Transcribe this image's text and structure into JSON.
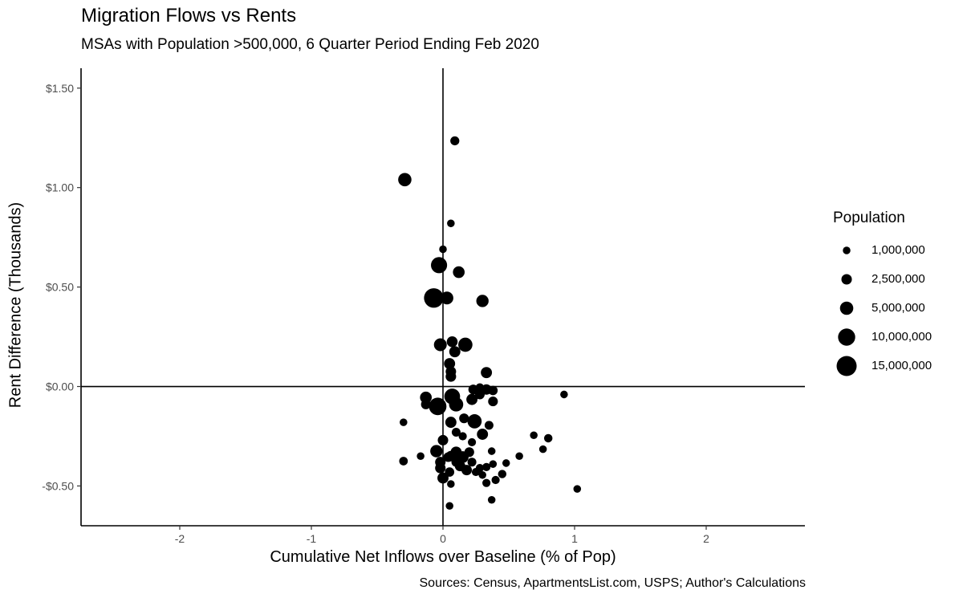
{
  "chart_data": {
    "type": "scatter",
    "title": "Migration Flows vs Rents",
    "subtitle": "MSAs with Population >500,000, 6 Quarter Period Ending Feb 2020",
    "xlabel": "Cumulative Net Inflows over Baseline (% of Pop)",
    "ylabel": "Rent Difference (Thousands)",
    "caption": "Sources: Census, ApartmentsList.com, USPS; Author's Calculations",
    "xlim": [
      -2.75,
      2.75
    ],
    "ylim": [
      -0.7,
      1.6
    ],
    "x_ticks": [
      {
        "value": -2,
        "label": "-2"
      },
      {
        "value": -1,
        "label": "-1"
      },
      {
        "value": 0,
        "label": "0"
      },
      {
        "value": 1,
        "label": "1"
      },
      {
        "value": 2,
        "label": "2"
      }
    ],
    "y_ticks": [
      {
        "value": -0.5,
        "label": "-$0.50"
      },
      {
        "value": 0,
        "label": "$0.00"
      },
      {
        "value": 0.5,
        "label": "$0.50"
      },
      {
        "value": 1.0,
        "label": "$1.00"
      },
      {
        "value": 1.5,
        "label": "$1.50"
      }
    ],
    "reference_lines": {
      "x": 0,
      "y": 0
    },
    "grid": false,
    "legend": {
      "title": "Population",
      "placement": "right",
      "entries": [
        {
          "label": "1,000,000",
          "value": 1000000
        },
        {
          "label": "2,500,000",
          "value": 2500000
        },
        {
          "label": "5,000,000",
          "value": 5000000
        },
        {
          "label": "10,000,000",
          "value": 10000000
        },
        {
          "label": "15,000,000",
          "value": 15000000
        }
      ]
    },
    "points": [
      {
        "x": 0.09,
        "y": 1.235,
        "pop": 1600000
      },
      {
        "x": -0.29,
        "y": 1.04,
        "pop": 5000000
      },
      {
        "x": 0.06,
        "y": 0.82,
        "pop": 1000000
      },
      {
        "x": 0.0,
        "y": 0.69,
        "pop": 1000000
      },
      {
        "x": -0.03,
        "y": 0.61,
        "pop": 8500000
      },
      {
        "x": 0.12,
        "y": 0.575,
        "pop": 3500000
      },
      {
        "x": -0.07,
        "y": 0.445,
        "pop": 14000000
      },
      {
        "x": 0.03,
        "y": 0.445,
        "pop": 4500000
      },
      {
        "x": 0.3,
        "y": 0.43,
        "pop": 4000000
      },
      {
        "x": -0.02,
        "y": 0.21,
        "pop": 4500000
      },
      {
        "x": 0.07,
        "y": 0.225,
        "pop": 2800000
      },
      {
        "x": 0.17,
        "y": 0.21,
        "pop": 6000000
      },
      {
        "x": 0.09,
        "y": 0.175,
        "pop": 3000000
      },
      {
        "x": 0.05,
        "y": 0.115,
        "pop": 3000000
      },
      {
        "x": 0.06,
        "y": 0.075,
        "pop": 2500000
      },
      {
        "x": 0.06,
        "y": 0.05,
        "pop": 2500000
      },
      {
        "x": 0.33,
        "y": 0.07,
        "pop": 3000000
      },
      {
        "x": 0.23,
        "y": -0.015,
        "pop": 2000000
      },
      {
        "x": 0.28,
        "y": -0.005,
        "pop": 1300000
      },
      {
        "x": 0.33,
        "y": -0.015,
        "pop": 2500000
      },
      {
        "x": 0.38,
        "y": -0.02,
        "pop": 1800000
      },
      {
        "x": 0.38,
        "y": -0.075,
        "pop": 2000000
      },
      {
        "x": -0.13,
        "y": -0.055,
        "pop": 3500000
      },
      {
        "x": -0.13,
        "y": -0.09,
        "pop": 2000000
      },
      {
        "x": -0.04,
        "y": -0.1,
        "pop": 10500000
      },
      {
        "x": 0.07,
        "y": -0.05,
        "pop": 8000000
      },
      {
        "x": 0.1,
        "y": -0.09,
        "pop": 6000000
      },
      {
        "x": 0.22,
        "y": -0.065,
        "pop": 3000000
      },
      {
        "x": 0.28,
        "y": -0.04,
        "pop": 2000000
      },
      {
        "x": 0.92,
        "y": -0.04,
        "pop": 1000000
      },
      {
        "x": -0.3,
        "y": -0.18,
        "pop": 1000000
      },
      {
        "x": 0.06,
        "y": -0.18,
        "pop": 3000000
      },
      {
        "x": 0.16,
        "y": -0.16,
        "pop": 2000000
      },
      {
        "x": 0.24,
        "y": -0.175,
        "pop": 6000000
      },
      {
        "x": 0.35,
        "y": -0.195,
        "pop": 1500000
      },
      {
        "x": 0.1,
        "y": -0.23,
        "pop": 1500000
      },
      {
        "x": 0.3,
        "y": -0.24,
        "pop": 3000000
      },
      {
        "x": 0.0,
        "y": -0.27,
        "pop": 2500000
      },
      {
        "x": 0.15,
        "y": -0.25,
        "pop": 1200000
      },
      {
        "x": 0.22,
        "y": -0.28,
        "pop": 1200000
      },
      {
        "x": 0.69,
        "y": -0.245,
        "pop": 1000000
      },
      {
        "x": 0.8,
        "y": -0.26,
        "pop": 1300000
      },
      {
        "x": 0.76,
        "y": -0.315,
        "pop": 1000000
      },
      {
        "x": -0.05,
        "y": -0.325,
        "pop": 4000000
      },
      {
        "x": 0.06,
        "y": -0.35,
        "pop": 2500000
      },
      {
        "x": 0.1,
        "y": -0.33,
        "pop": 3000000
      },
      {
        "x": 0.15,
        "y": -0.355,
        "pop": 3500000
      },
      {
        "x": 0.2,
        "y": -0.33,
        "pop": 2000000
      },
      {
        "x": 0.37,
        "y": -0.325,
        "pop": 1000000
      },
      {
        "x": 0.58,
        "y": -0.35,
        "pop": 1000000
      },
      {
        "x": -0.3,
        "y": -0.375,
        "pop": 1400000
      },
      {
        "x": -0.17,
        "y": -0.35,
        "pop": 1000000
      },
      {
        "x": -0.02,
        "y": -0.38,
        "pop": 2500000
      },
      {
        "x": 0.04,
        "y": -0.355,
        "pop": 2000000
      },
      {
        "x": 0.1,
        "y": -0.38,
        "pop": 1800000
      },
      {
        "x": 0.13,
        "y": -0.4,
        "pop": 2500000
      },
      {
        "x": 0.18,
        "y": -0.42,
        "pop": 2500000
      },
      {
        "x": 0.22,
        "y": -0.38,
        "pop": 1500000
      },
      {
        "x": 0.28,
        "y": -0.41,
        "pop": 1200000
      },
      {
        "x": 0.33,
        "y": -0.405,
        "pop": 1200000
      },
      {
        "x": 0.38,
        "y": -0.39,
        "pop": 1000000
      },
      {
        "x": 0.48,
        "y": -0.385,
        "pop": 1000000
      },
      {
        "x": -0.02,
        "y": -0.41,
        "pop": 2500000
      },
      {
        "x": 0.05,
        "y": -0.43,
        "pop": 1800000
      },
      {
        "x": 0.25,
        "y": -0.43,
        "pop": 1200000
      },
      {
        "x": 0.3,
        "y": -0.445,
        "pop": 1000000
      },
      {
        "x": 0.45,
        "y": -0.44,
        "pop": 1300000
      },
      {
        "x": 0.4,
        "y": -0.47,
        "pop": 1200000
      },
      {
        "x": 0.0,
        "y": -0.46,
        "pop": 3000000
      },
      {
        "x": 0.06,
        "y": -0.49,
        "pop": 1000000
      },
      {
        "x": 0.33,
        "y": -0.485,
        "pop": 1200000
      },
      {
        "x": 1.02,
        "y": -0.515,
        "pop": 1000000
      },
      {
        "x": 0.37,
        "y": -0.57,
        "pop": 1000000
      },
      {
        "x": 0.05,
        "y": -0.6,
        "pop": 1000000
      }
    ]
  }
}
